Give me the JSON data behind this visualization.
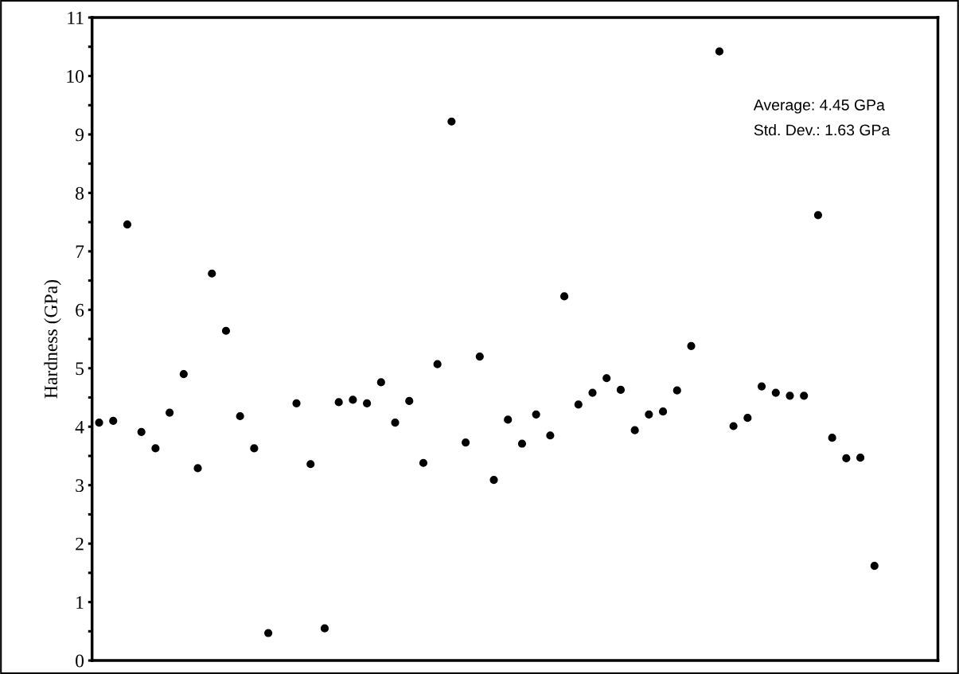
{
  "chart_data": {
    "type": "scatter",
    "categories": [
      null,
      null,
      null,
      null,
      null,
      null,
      null,
      null,
      null,
      null,
      null,
      null,
      null,
      null,
      null,
      null,
      null,
      null,
      null,
      null,
      null,
      null,
      null,
      null,
      null,
      null,
      null,
      null,
      null,
      null,
      null,
      null,
      null,
      null,
      null,
      null,
      null,
      null,
      null,
      null,
      null,
      null,
      null,
      null,
      null,
      null,
      null,
      null,
      null,
      null,
      null,
      null,
      null,
      null,
      null,
      null,
      null,
      null,
      null,
      null
    ],
    "values": [
      4.07,
      4.1,
      7.46,
      3.91,
      3.63,
      4.24,
      4.9,
      3.29,
      6.62,
      5.64,
      4.18,
      3.63,
      0.47,
      null,
      4.4,
      3.36,
      0.55,
      4.42,
      4.46,
      4.4,
      4.76,
      4.07,
      4.44,
      3.38,
      5.07,
      9.22,
      3.73,
      5.2,
      3.09,
      4.12,
      3.71,
      4.21,
      3.85,
      6.23,
      4.38,
      4.58,
      4.83,
      4.63,
      3.94,
      4.21,
      4.26,
      4.62,
      5.38,
      null,
      10.42,
      4.01,
      4.15,
      4.69,
      4.58,
      4.53,
      4.53,
      7.62,
      3.81,
      3.46,
      3.47,
      1.62,
      null,
      null,
      null,
      null
    ],
    "color": "#000000",
    "marker": "circle",
    "ylabel": "Hardness (GPa)",
    "ylim": [
      0,
      11
    ],
    "yticks": [
      0,
      {
        "value": 0.5,
        "label": null
      },
      1,
      {
        "value": 1.5,
        "label": null
      },
      2,
      {
        "value": 2.5,
        "label": null
      },
      3,
      {
        "value": 3.5,
        "label": null
      },
      4,
      {
        "value": 4.5,
        "label": null
      },
      5,
      {
        "value": 5.5,
        "label": null
      },
      6,
      {
        "value": 6.5,
        "label": null
      },
      7,
      {
        "value": 7.5,
        "label": null
      },
      8,
      {
        "value": 8.5,
        "label": null
      },
      9,
      {
        "value": 9.5,
        "label": null
      },
      10,
      {
        "value": 10.5,
        "label": null
      },
      11
    ],
    "tick_labels": "y",
    "grid": false,
    "legend": false,
    "annotations": [
      "Average: 4.45 GPa",
      "Std. Dev.: 1.63 GPa"
    ]
  }
}
